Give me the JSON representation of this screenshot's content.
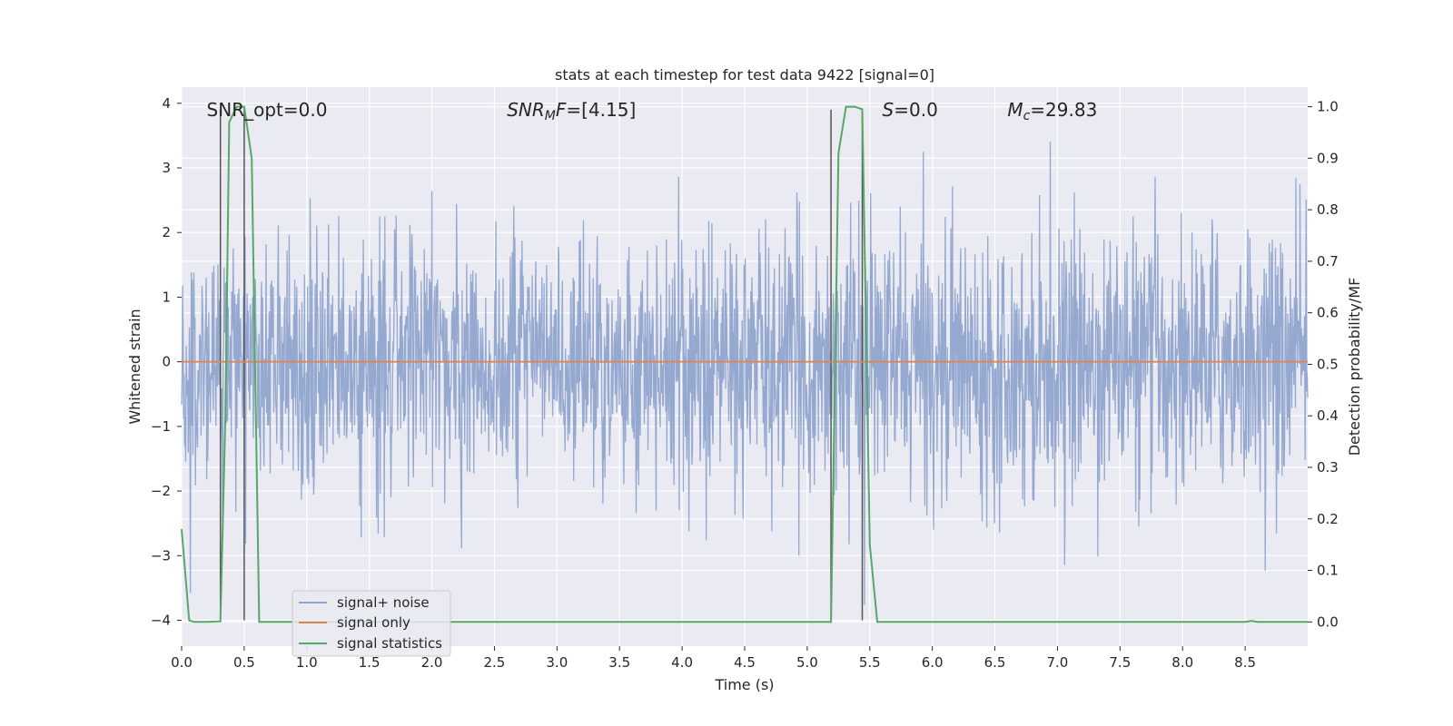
{
  "chart_data": {
    "type": "line",
    "title": "stats at each timestep for test data 9422 [signal=0]",
    "xlabel": "Time (s)",
    "ylabel": "Whitened strain",
    "y2label": "Detection probability/MF",
    "xlim": [
      0,
      9.0
    ],
    "ylim": [
      -4.4,
      4.25
    ],
    "y2lim": [
      -0.047,
      1.038
    ],
    "x_ticks": [
      "0.0",
      "0.5",
      "1.0",
      "1.5",
      "2.0",
      "2.5",
      "3.0",
      "3.5",
      "4.0",
      "4.5",
      "5.0",
      "5.5",
      "6.0",
      "6.5",
      "7.0",
      "7.5",
      "8.0",
      "8.5"
    ],
    "y_ticks": [
      "−4",
      "−3",
      "−2",
      "−1",
      "0",
      "1",
      "2",
      "3",
      "4"
    ],
    "y2_ticks": [
      "0.0",
      "0.1",
      "0.2",
      "0.3",
      "0.4",
      "0.5",
      "0.6",
      "0.7",
      "0.8",
      "0.9",
      "1.0"
    ],
    "grid": true,
    "legend_position": "lower-left",
    "annotations": [
      {
        "text": "SNR_opt=0.0",
        "x": 0.2,
        "y": 3.9,
        "italic": false
      },
      {
        "text": "SNR_MF=[4.15]",
        "x": 2.6,
        "y": 3.9,
        "italic": true
      },
      {
        "text": "S=0.0",
        "x": 5.6,
        "y": 3.9,
        "italic": true
      },
      {
        "text": "M_c=29.83",
        "x": 6.6,
        "y": 3.9,
        "italic": true
      }
    ],
    "vlines": [
      {
        "x": 0.31,
        "y_range": [
          -4,
          3.9
        ]
      },
      {
        "x": 0.5,
        "y_range": [
          -4,
          3.9
        ]
      },
      {
        "x": 5.19,
        "y_range": [
          -4,
          3.9
        ]
      },
      {
        "x": 5.44,
        "y_range": [
          -4,
          3.9
        ]
      }
    ],
    "series": [
      {
        "name": "signal+ noise",
        "color": "#8fa4ce",
        "axis": "left",
        "description": "whitened strain noise, amplitude mostly within ±2.5, peaks near 3.7 and -3.9",
        "x": [],
        "y": []
      },
      {
        "name": "signal only",
        "color": "#dd8452",
        "axis": "left",
        "x": [
          0.0,
          9.0
        ],
        "y": [
          0.0,
          0.0
        ]
      },
      {
        "name": "signal statistics",
        "color": "#55a868",
        "axis": "right",
        "x": [
          0.0,
          0.06,
          0.1,
          0.2,
          0.31,
          0.35,
          0.38,
          0.44,
          0.5,
          0.56,
          0.62,
          1.0,
          2.0,
          3.0,
          4.0,
          5.0,
          5.19,
          5.25,
          5.31,
          5.38,
          5.44,
          5.5,
          5.56,
          6.0,
          7.0,
          8.0,
          8.5,
          8.55,
          8.6,
          9.0
        ],
        "y": [
          0.18,
          0.003,
          0.0,
          0.0,
          0.001,
          0.4,
          0.97,
          1.0,
          1.0,
          0.9,
          0.0,
          0.0,
          0.0,
          0.0,
          0.0,
          0.0,
          0.0,
          0.91,
          1.0,
          1.0,
          0.995,
          0.15,
          0.0,
          0.0,
          0.0,
          0.0,
          0.0,
          0.002,
          0.0,
          0.0
        ]
      }
    ]
  },
  "colors": {
    "plot_background": "#eaeaf2",
    "grid": "#ffffff",
    "vline": "#555555",
    "text": "#262626"
  }
}
